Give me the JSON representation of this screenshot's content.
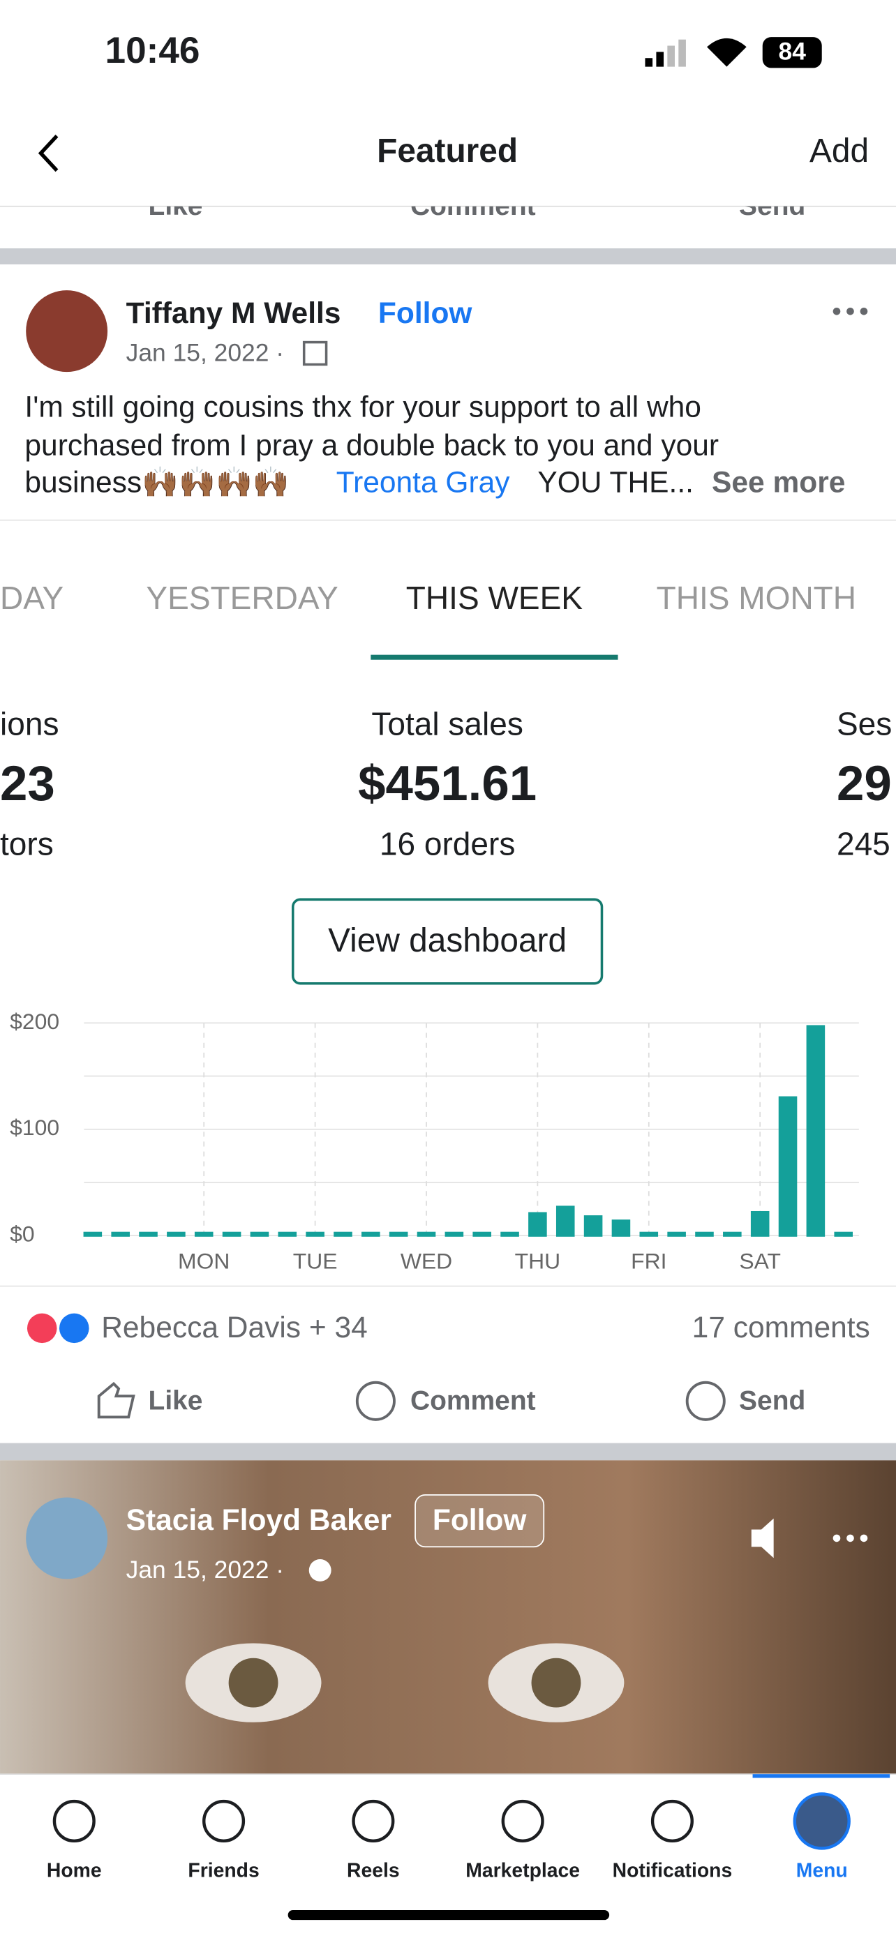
{
  "status": {
    "time": "10:46",
    "battery": "84"
  },
  "nav": {
    "title": "Featured",
    "action": "Add"
  },
  "prev_actions": [
    "Like",
    "Comment",
    "Send"
  ],
  "post": {
    "author": "Tiffany M Wells",
    "follow": "Follow",
    "date": "Jan 15, 2022 ·",
    "body": [
      "I'm still going cousins thx for your support to all who",
      "purchased from I pray a double back to you and your",
      "business🙌🏾🙌🏾🙌🏾🙌🏾"
    ],
    "mention": "Treonta Gray",
    "tail": "YOU THE...",
    "see_more": "See more",
    "reactions": "Rebecca Davis + 34",
    "comments": "17 comments",
    "actions": [
      "Like",
      "Comment",
      "Send"
    ]
  },
  "tabs": [
    "DAY",
    "YESTERDAY",
    "THIS WEEK",
    "THIS MONTH"
  ],
  "stats": {
    "left": [
      "ions",
      "23",
      "tors"
    ],
    "center": [
      "Total sales",
      "$451.61",
      "16 orders"
    ],
    "right": [
      "Ses",
      "29",
      "245"
    ],
    "button": "View dashboard"
  },
  "chart_data": {
    "type": "bar",
    "color": "#14a09a",
    "categories": [
      null,
      null,
      null,
      null,
      "MON",
      null,
      null,
      null,
      "TUE",
      null,
      null,
      null,
      "WED",
      null,
      null,
      null,
      "THU",
      null,
      null,
      null,
      "FRI",
      null,
      null,
      null,
      "SAT",
      null,
      null,
      null
    ],
    "values": [
      0,
      0,
      0,
      0,
      0,
      0,
      0,
      0,
      0,
      0,
      0,
      0,
      0,
      0,
      0,
      0,
      22,
      28,
      19,
      15,
      0,
      0,
      0,
      0,
      23,
      131,
      198,
      0
    ],
    "ylim": [
      0,
      200
    ],
    "yticks": [
      {
        "value": 0,
        "label": "$0"
      },
      {
        "value": 100,
        "label": "$100"
      },
      {
        "value": 200,
        "label": "$200"
      }
    ],
    "minor_grid": [
      50,
      150
    ],
    "grid": true
  },
  "post2": {
    "author": "Stacia Floyd Baker",
    "follow": "Follow",
    "date": "Jan 15, 2022 ·"
  },
  "tabbar": [
    "Home",
    "Friends",
    "Reels",
    "Marketplace",
    "Notifications",
    "Menu"
  ]
}
